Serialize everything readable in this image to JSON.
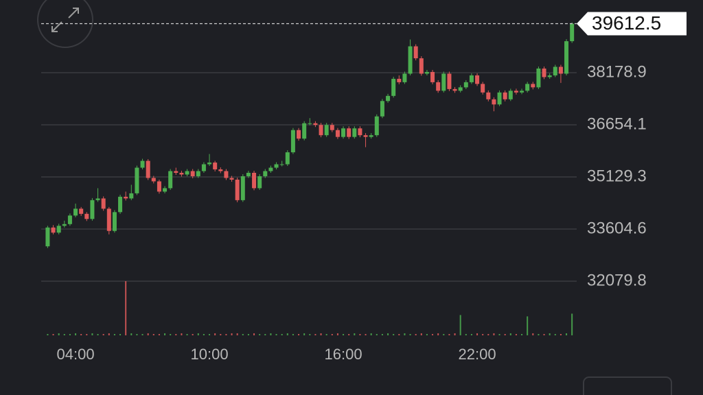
{
  "chart_data": {
    "type": "candlestick",
    "x": [
      2.75,
      3,
      3.25,
      3.5,
      3.75,
      4,
      4.25,
      4.5,
      4.75,
      5,
      5.25,
      5.5,
      5.75,
      6,
      6.25,
      6.5,
      6.75,
      7,
      7.25,
      7.5,
      7.75,
      8,
      8.25,
      8.5,
      8.75,
      9,
      9.25,
      9.5,
      9.75,
      10,
      10.25,
      10.5,
      10.75,
      11,
      11.25,
      11.5,
      11.75,
      12,
      12.25,
      12.5,
      12.75,
      13,
      13.25,
      13.5,
      13.75,
      14,
      14.25,
      14.5,
      14.75,
      15,
      15.25,
      15.5,
      15.75,
      16,
      16.25,
      16.5,
      16.75,
      17,
      17.25,
      17.5,
      17.75,
      18,
      18.25,
      18.5,
      18.75,
      19,
      19.25,
      19.5,
      19.75,
      20,
      20.25,
      20.5,
      20.75,
      21,
      21.25,
      21.5,
      21.75,
      22,
      22.25,
      22.5,
      22.75,
      23,
      23.25,
      23.5,
      23.75,
      24,
      24.25,
      24.5,
      24.75,
      25,
      25.25,
      25.5,
      25.75,
      26,
      26.25
    ],
    "open": [
      33100,
      33650,
      33500,
      33700,
      33750,
      34000,
      34200,
      34050,
      33900,
      34450,
      34500,
      34200,
      33550,
      34100,
      34550,
      34500,
      34650,
      35400,
      35600,
      35100,
      35000,
      34700,
      34800,
      35300,
      35250,
      35200,
      35300,
      35150,
      35300,
      35500,
      35550,
      35350,
      35300,
      35100,
      35050,
      34450,
      35150,
      35250,
      34800,
      35150,
      35300,
      35400,
      35500,
      35500,
      35850,
      36500,
      36250,
      36700,
      36700,
      36650,
      36350,
      36650,
      36500,
      36300,
      36550,
      36300,
      36550,
      36350,
      36300,
      36350,
      36900,
      37350,
      37500,
      38000,
      37900,
      38150,
      38950,
      38600,
      38150,
      38200,
      37900,
      37650,
      38150,
      37700,
      37650,
      37750,
      37900,
      38100,
      37850,
      37600,
      37400,
      37250,
      37600,
      37400,
      37650,
      37600,
      37650,
      37850,
      37750,
      38300,
      38050,
      38100,
      38350,
      38150,
      39100
    ],
    "high": [
      33700,
      33720,
      33760,
      33850,
      34060,
      34350,
      34250,
      34100,
      34510,
      34800,
      34560,
      34250,
      34160,
      34610,
      34700,
      34900,
      35460,
      35660,
      35650,
      35160,
      35050,
      34860,
      35360,
      35400,
      35310,
      35360,
      35360,
      35360,
      35560,
      35800,
      35600,
      35410,
      35360,
      35160,
      35110,
      35210,
      35310,
      35310,
      35210,
      35360,
      35460,
      35560,
      35600,
      35910,
      36560,
      36560,
      36760,
      36850,
      36760,
      36710,
      36710,
      36710,
      36560,
      36610,
      36610,
      36610,
      36610,
      36410,
      36410,
      36960,
      37410,
      37560,
      38060,
      38100,
      38210,
      39150,
      39010,
      38660,
      38260,
      38260,
      37960,
      38210,
      38210,
      37760,
      37810,
      37960,
      38160,
      38160,
      37910,
      37660,
      37460,
      37660,
      37660,
      37710,
      37710,
      37710,
      37910,
      37910,
      38360,
      38360,
      38160,
      38410,
      38410,
      39160,
      39650
    ],
    "low": [
      33050,
      33450,
      33450,
      33650,
      33700,
      33950,
      33990,
      33840,
      33850,
      34400,
      34140,
      33450,
      33500,
      34050,
      34440,
      34450,
      34600,
      35350,
      35040,
      34940,
      34640,
      34650,
      34750,
      35190,
      35140,
      35150,
      35090,
      35100,
      35250,
      35450,
      35290,
      35240,
      35040,
      34990,
      34390,
      34400,
      35100,
      34740,
      34750,
      35100,
      35250,
      35350,
      35440,
      35450,
      35800,
      36190,
      36200,
      36640,
      36590,
      36290,
      36300,
      36440,
      36240,
      36250,
      36240,
      36250,
      36290,
      36000,
      36250,
      36300,
      36850,
      37300,
      37450,
      37840,
      37850,
      38100,
      38540,
      38090,
      38100,
      37840,
      37590,
      37600,
      37640,
      37590,
      37600,
      37700,
      37850,
      37790,
      37540,
      37340,
      37050,
      37200,
      37340,
      37350,
      37540,
      37550,
      37600,
      37690,
      37700,
      37990,
      38000,
      38050,
      37880,
      38100,
      39050
    ],
    "close": [
      33650,
      33500,
      33700,
      33750,
      34000,
      34200,
      34050,
      33900,
      34450,
      34500,
      34200,
      33550,
      34100,
      34550,
      34500,
      34650,
      35400,
      35600,
      35100,
      35000,
      34700,
      34800,
      35300,
      35250,
      35200,
      35300,
      35150,
      35300,
      35500,
      35550,
      35350,
      35300,
      35100,
      35050,
      34450,
      35150,
      35250,
      34800,
      35150,
      35300,
      35400,
      35500,
      35500,
      35850,
      36500,
      36250,
      36700,
      36700,
      36650,
      36350,
      36650,
      36500,
      36300,
      36550,
      36300,
      36550,
      36350,
      36300,
      36350,
      36900,
      37350,
      37500,
      38000,
      37900,
      38150,
      38950,
      38600,
      38150,
      38200,
      37900,
      37650,
      38150,
      37700,
      37650,
      37750,
      37900,
      38100,
      37850,
      37600,
      37400,
      37250,
      37600,
      37400,
      37650,
      37600,
      37650,
      37850,
      37750,
      38300,
      38050,
      38100,
      38350,
      38150,
      39100,
      39612.5
    ],
    "volumes": [
      2,
      2,
      3,
      2,
      2,
      3,
      2,
      2,
      3,
      2,
      2,
      3,
      2,
      2,
      80,
      3,
      2,
      2,
      3,
      2,
      2,
      3,
      2,
      2,
      3,
      2,
      2,
      3,
      2,
      2,
      3,
      2,
      2,
      3,
      3,
      2,
      2,
      3,
      2,
      2,
      3,
      2,
      2,
      3,
      2,
      2,
      3,
      2,
      2,
      3,
      2,
      2,
      3,
      2,
      2,
      3,
      2,
      2,
      3,
      2,
      2,
      3,
      2,
      2,
      3,
      2,
      2,
      3,
      2,
      2,
      3,
      2,
      2,
      3,
      30,
      2,
      2,
      3,
      2,
      2,
      3,
      2,
      2,
      3,
      2,
      2,
      28,
      3,
      2,
      2,
      3,
      2,
      2,
      3,
      32
    ],
    "up_color": "#4caf50",
    "down_color": "#e05a5a",
    "xlim": [
      2.46,
      26.46
    ],
    "xticks": [
      {
        "value": 4,
        "label": "04:00"
      },
      {
        "value": 10,
        "label": "10:00"
      },
      {
        "value": 16,
        "label": "16:00"
      },
      {
        "value": 22,
        "label": "22:00"
      }
    ],
    "ylim": [
      30496,
      40305
    ],
    "yticks": [
      32079.8,
      33604.6,
      35129.3,
      36654.1,
      38178.9
    ],
    "grid": true
  }
}
